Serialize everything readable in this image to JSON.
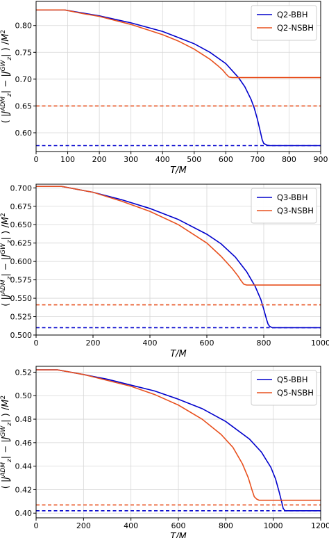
{
  "chart_data": [
    {
      "type": "line",
      "xlabel": "T/M",
      "ylabel": "( |J_z^ADM| − |J_z^GW| ) /M²",
      "xlim": [
        0,
        900
      ],
      "ylim": [
        0.565,
        0.845
      ],
      "xticks": [
        0,
        100,
        200,
        300,
        400,
        500,
        600,
        700,
        800,
        900
      ],
      "yticks": [
        0.6,
        0.65,
        0.7,
        0.75,
        0.8
      ],
      "ytick_labels": [
        "0.60",
        "0.65",
        "0.70",
        "0.75",
        "0.80"
      ],
      "grid": true,
      "legend_position": "top-right",
      "series": [
        {
          "name": "Q2-BBH",
          "color": "#0000cc",
          "style": "solid",
          "x": [
            0,
            90,
            150,
            200,
            300,
            400,
            500,
            550,
            600,
            640,
            660,
            680,
            690,
            700,
            710,
            715,
            720,
            730,
            740,
            760,
            800,
            900
          ],
          "y": [
            0.829,
            0.829,
            0.823,
            0.818,
            0.805,
            0.789,
            0.766,
            0.75,
            0.729,
            0.703,
            0.686,
            0.662,
            0.646,
            0.625,
            0.6,
            0.587,
            0.58,
            0.577,
            0.576,
            0.576,
            0.576,
            0.576
          ]
        },
        {
          "name": "Q2-NSBH",
          "color": "#e8501e",
          "style": "solid",
          "x": [
            0,
            90,
            150,
            200,
            300,
            400,
            450,
            500,
            550,
            575,
            590,
            600,
            610,
            620,
            640,
            700,
            800,
            900
          ],
          "y": [
            0.829,
            0.829,
            0.822,
            0.817,
            0.802,
            0.783,
            0.771,
            0.756,
            0.737,
            0.725,
            0.717,
            0.71,
            0.704,
            0.703,
            0.703,
            0.703,
            0.703,
            0.703
          ]
        },
        {
          "name": "",
          "color": "#0000cc",
          "style": "dashed",
          "x": [
            0,
            900
          ],
          "y": [
            0.576,
            0.576
          ]
        },
        {
          "name": "",
          "color": "#e8501e",
          "style": "dashed",
          "x": [
            0,
            900
          ],
          "y": [
            0.65,
            0.65
          ]
        }
      ]
    },
    {
      "type": "line",
      "xlabel": "T/M",
      "ylabel": "( |J_z^ADM| − |J_z^GW| ) /M²",
      "xlim": [
        0,
        1000
      ],
      "ylim": [
        0.5,
        0.705
      ],
      "xticks": [
        0,
        200,
        400,
        600,
        800,
        1000
      ],
      "yticks": [
        0.5,
        0.525,
        0.55,
        0.575,
        0.6,
        0.625,
        0.65,
        0.675,
        0.7
      ],
      "ytick_labels": [
        "0.500",
        "0.525",
        "0.550",
        "0.575",
        "0.600",
        "0.625",
        "0.650",
        "0.675",
        "0.700"
      ],
      "grid": true,
      "legend_position": "top-right",
      "series": [
        {
          "name": "Q3-BBH",
          "color": "#0000cc",
          "style": "solid",
          "x": [
            0,
            90,
            200,
            300,
            400,
            500,
            600,
            650,
            700,
            740,
            770,
            790,
            800,
            810,
            815,
            820,
            830,
            850,
            900,
            1000
          ],
          "y": [
            0.702,
            0.702,
            0.694,
            0.684,
            0.672,
            0.657,
            0.637,
            0.624,
            0.606,
            0.586,
            0.566,
            0.548,
            0.535,
            0.521,
            0.515,
            0.512,
            0.51,
            0.51,
            0.51,
            0.51
          ]
        },
        {
          "name": "Q3-NSBH",
          "color": "#e8501e",
          "style": "solid",
          "x": [
            0,
            90,
            200,
            300,
            400,
            500,
            600,
            650,
            690,
            710,
            720,
            730,
            740,
            760,
            800,
            900,
            1000
          ],
          "y": [
            0.702,
            0.702,
            0.694,
            0.682,
            0.668,
            0.65,
            0.625,
            0.607,
            0.59,
            0.58,
            0.574,
            0.569,
            0.568,
            0.568,
            0.568,
            0.568,
            0.568
          ]
        },
        {
          "name": "",
          "color": "#0000cc",
          "style": "dashed",
          "x": [
            0,
            1000
          ],
          "y": [
            0.51,
            0.51
          ]
        },
        {
          "name": "",
          "color": "#e8501e",
          "style": "dashed",
          "x": [
            0,
            1000
          ],
          "y": [
            0.541,
            0.541
          ]
        }
      ]
    },
    {
      "type": "line",
      "xlabel": "T/M",
      "ylabel": "( |J_z^ADM| − |J_z^GW| ) /M²",
      "xlim": [
        0,
        1200
      ],
      "ylim": [
        0.396,
        0.525
      ],
      "xticks": [
        0,
        200,
        400,
        600,
        800,
        1000,
        1200
      ],
      "yticks": [
        0.4,
        0.42,
        0.44,
        0.46,
        0.48,
        0.5,
        0.52
      ],
      "ytick_labels": [
        "0.40",
        "0.42",
        "0.44",
        "0.46",
        "0.48",
        "0.50",
        "0.52"
      ],
      "grid": true,
      "legend_position": "top-right",
      "series": [
        {
          "name": "Q5-BBH",
          "color": "#0000cc",
          "style": "solid",
          "x": [
            0,
            90,
            200,
            300,
            400,
            500,
            600,
            700,
            800,
            900,
            950,
            990,
            1010,
            1025,
            1035,
            1042,
            1050,
            1070,
            1100,
            1200
          ],
          "y": [
            0.522,
            0.522,
            0.518,
            0.514,
            0.509,
            0.504,
            0.497,
            0.489,
            0.478,
            0.463,
            0.452,
            0.439,
            0.429,
            0.418,
            0.41,
            0.404,
            0.402,
            0.402,
            0.402,
            0.402
          ]
        },
        {
          "name": "Q5-NSBH",
          "color": "#e8501e",
          "style": "solid",
          "x": [
            0,
            90,
            200,
            300,
            400,
            500,
            600,
            700,
            780,
            830,
            870,
            895,
            910,
            920,
            930,
            940,
            960,
            1000,
            1100,
            1200
          ],
          "y": [
            0.522,
            0.522,
            0.518,
            0.513,
            0.508,
            0.501,
            0.492,
            0.48,
            0.467,
            0.456,
            0.442,
            0.43,
            0.42,
            0.414,
            0.412,
            0.411,
            0.411,
            0.411,
            0.411,
            0.411
          ]
        },
        {
          "name": "",
          "color": "#0000cc",
          "style": "dashed",
          "x": [
            0,
            1200
          ],
          "y": [
            0.402,
            0.402
          ]
        },
        {
          "name": "",
          "color": "#e8501e",
          "style": "dashed",
          "x": [
            0,
            1200
          ],
          "y": [
            0.407,
            0.407
          ]
        }
      ]
    }
  ]
}
